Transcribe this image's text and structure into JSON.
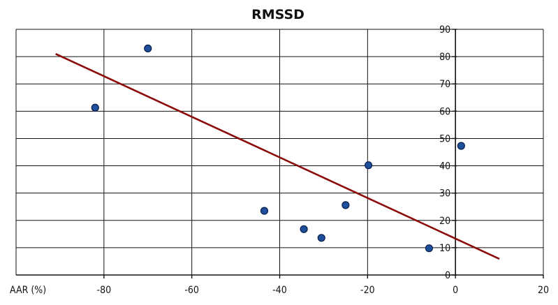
{
  "chart_data": {
    "type": "scatter",
    "title": "RMSSD",
    "xlabel": "AAR (%)",
    "ylabel": "",
    "xlim": [
      -100,
      20
    ],
    "ylim": [
      0,
      90
    ],
    "x_ticks": [
      -80,
      -60,
      -40,
      -20,
      0,
      20
    ],
    "y_ticks": [
      0,
      10,
      20,
      30,
      40,
      50,
      60,
      70,
      80,
      90
    ],
    "grid": true,
    "series": [
      {
        "points": [
          {
            "x": -82,
            "y": 61.3
          },
          {
            "x": -70,
            "y": 83
          },
          {
            "x": -43.5,
            "y": 23.5
          },
          {
            "x": -34.5,
            "y": 16.8
          },
          {
            "x": -30.5,
            "y": 13.6
          },
          {
            "x": -25,
            "y": 25.6
          },
          {
            "x": -19.8,
            "y": 40.2
          },
          {
            "x": -6,
            "y": 9.8
          },
          {
            "x": 1.3,
            "y": 47.3
          }
        ],
        "color": "#1e4f9c"
      }
    ],
    "trendline": {
      "x": [
        -91,
        10
      ],
      "y": [
        81,
        5.9
      ],
      "color": "#8b0a0a"
    }
  }
}
